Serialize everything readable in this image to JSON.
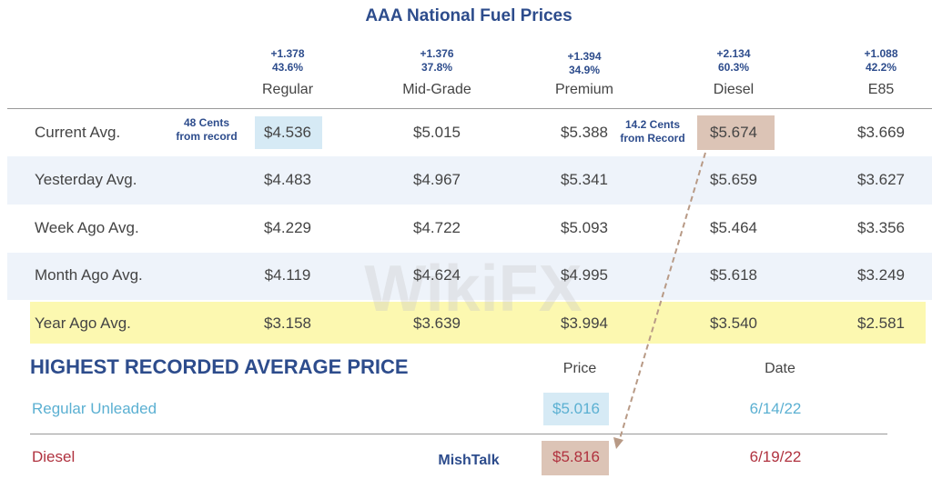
{
  "header": {
    "title": "AAA National Fuel Prices"
  },
  "columns": [
    {
      "name": "Regular",
      "change": "+1.378",
      "pct": "43.6%"
    },
    {
      "name": "Mid-Grade",
      "change": "+1.376",
      "pct": "37.8%"
    },
    {
      "name": "Premium",
      "change": "+1.394",
      "pct": "34.9%"
    },
    {
      "name": "Diesel",
      "change": "+2.134",
      "pct": "60.3%"
    },
    {
      "name": "E85",
      "change": "+1.088",
      "pct": "42.2%"
    }
  ],
  "rows": [
    {
      "label": "Current Avg.",
      "values": [
        "$4.536",
        "$5.015",
        "$5.388",
        "$5.674",
        "$3.669"
      ]
    },
    {
      "label": "Yesterday Avg.",
      "values": [
        "$4.483",
        "$4.967",
        "$5.341",
        "$5.659",
        "$3.627"
      ]
    },
    {
      "label": "Week Ago Avg.",
      "values": [
        "$4.229",
        "$4.722",
        "$5.093",
        "$5.464",
        "$3.356"
      ]
    },
    {
      "label": "Month Ago Avg.",
      "values": [
        "$4.119",
        "$4.624",
        "$4.995",
        "$5.618",
        "$3.249"
      ]
    },
    {
      "label": "Year Ago Avg.",
      "values": [
        "$3.158",
        "$3.639",
        "$3.994",
        "$3.540",
        "$2.581"
      ]
    }
  ],
  "notes": {
    "regular": [
      "48 Cents",
      "from record"
    ],
    "diesel": [
      "14.2 Cents",
      "from Record"
    ]
  },
  "record": {
    "title": "HIGHEST RECORDED AVERAGE PRICE",
    "price_header": "Price",
    "date_header": "Date",
    "rows": [
      {
        "label": "Regular Unleaded",
        "price": "$5.016",
        "date": "6/14/22"
      },
      {
        "label": "Diesel",
        "price": "$5.816",
        "date": "6/19/22"
      }
    ]
  },
  "credit": "MishTalk",
  "watermark": "WikiFX"
}
